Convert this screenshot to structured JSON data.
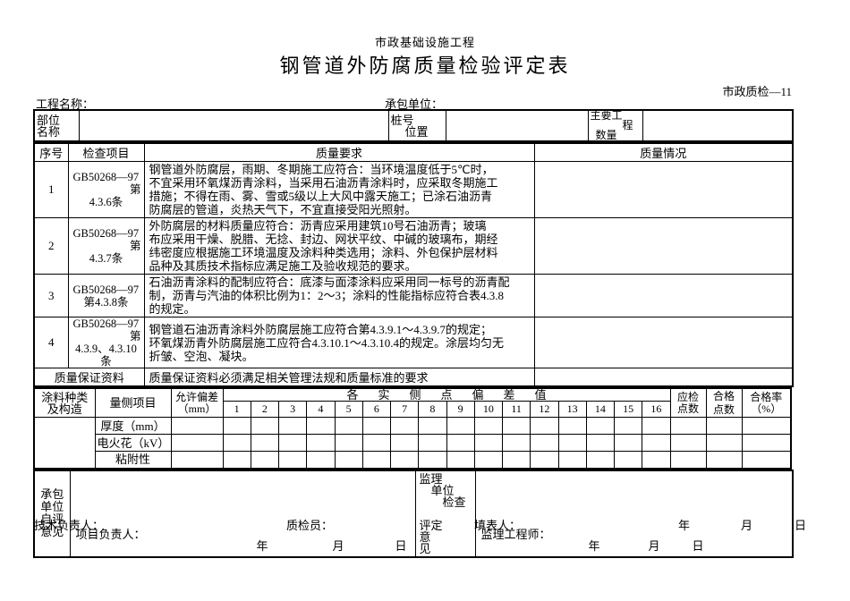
{
  "header": {
    "subtitle": "市政基础设施工程",
    "title": "钢管道外防腐质量检验评定表",
    "form_code": "市政质检—11",
    "project_name_label": "工程名称：",
    "contractor_label": "承包单位："
  },
  "info_row": {
    "part_lines": [
      "部位",
      "名称"
    ],
    "stake_lines": [
      "桩号",
      "位置"
    ],
    "quantity_lines": [
      "主要工",
      "程",
      "数量"
    ]
  },
  "quality_table": {
    "headers": {
      "seq": "序号",
      "item": "检查项目",
      "requirement": "质量要求",
      "situation": "质量情况"
    },
    "rows": [
      {
        "seq": "1",
        "item_lines": [
          "GB50268—97",
          "第",
          "4.3.6条"
        ],
        "requirement_lines": [
          "钢管道外防腐层，雨期、冬期施工应符合：当环境温度低于5℃时，",
          "不宜采用环氧煤沥青涂料，当采用石油沥青涂料时，应采取冬期施工",
          "措施；不得在雨、雾、雪或5级以上大风中露天施工；已涂石油沥青",
          "防腐层的管道，炎热天气下，不宜直接受阳光照射。"
        ]
      },
      {
        "seq": "2",
        "item_lines": [
          "GB50268—97",
          "第",
          "4.3.7条"
        ],
        "requirement_lines": [
          "外防腐层的材料质量应符合：沥青应采用建筑10号石油沥青；玻璃",
          "布应采用干燥、脱腊、无捻、封边、网状平纹、中碱的玻璃布，期经",
          "纬密度应根据施工环境温度及涂料种类选用；涂料、外包保护层材料",
          "品种及其质技术指标应满足施工及验收规范的要求。"
        ]
      },
      {
        "seq": "3",
        "item_lines": [
          "GB50268—97",
          "第4.3.8条"
        ],
        "requirement_lines": [
          "石油沥青涂料的配制应符合：底漆与面漆涂料应采用同一标号的沥青配",
          "制，沥青与汽油的体积比例为1：2～3；涂料的性能指标应符合表4.3.8",
          "的规定。"
        ]
      },
      {
        "seq": "4",
        "item_lines": [
          "GB50268—97",
          "第",
          "4.3.9、4.3.10",
          "条"
        ],
        "requirement_lines": [
          "钢管道石油沥青涂料外防腐层施工应符合第4.3.9.1～4.3.9.7的规定；",
          "环氧煤沥青外防腐层施工应符合4.3.10.1～4.3.10.4的规定。涂层均匀无",
          "折皱、空泡、凝块。"
        ]
      }
    ],
    "assurance": {
      "label": "质量保证资料",
      "text": "质量保证资料必须满足相关管理法规和质量标准的要求"
    }
  },
  "measure_table": {
    "coating_label": [
      "涂料种类",
      "及构造"
    ],
    "item_label": "量侧项目",
    "tolerance_label": [
      "允许偏差",
      "（mm）"
    ],
    "deviation_header": "各实侧点偏差值",
    "point_numbers": [
      "1",
      "2",
      "3",
      "4",
      "5",
      "6",
      "7",
      "8",
      "9",
      "10",
      "11",
      "12",
      "13",
      "14",
      "15",
      "16"
    ],
    "checked_label": [
      "应检",
      "点数"
    ],
    "passed_label": [
      "合格",
      "点数"
    ],
    "rate_label": [
      "合格率",
      "（%）"
    ],
    "rows": [
      "厚度（mm）",
      "电火花（kV）",
      "粘附性"
    ]
  },
  "bottom": {
    "self_label_lines": [
      "承包",
      "单位",
      "自评",
      "意见"
    ],
    "pm_label": "项目负责人：",
    "supervisor_label_lines": [
      "监理",
      "　单位",
      "　　检查",
      "",
      "评定　　意",
      "见"
    ],
    "engineer_label": "监理工程师："
  },
  "dates": {
    "year": "年",
    "month": "月",
    "day": "日"
  },
  "footer": {
    "tech_label": "技术负责人：",
    "qc_label": "质检员：",
    "filler_label": "填表人："
  }
}
